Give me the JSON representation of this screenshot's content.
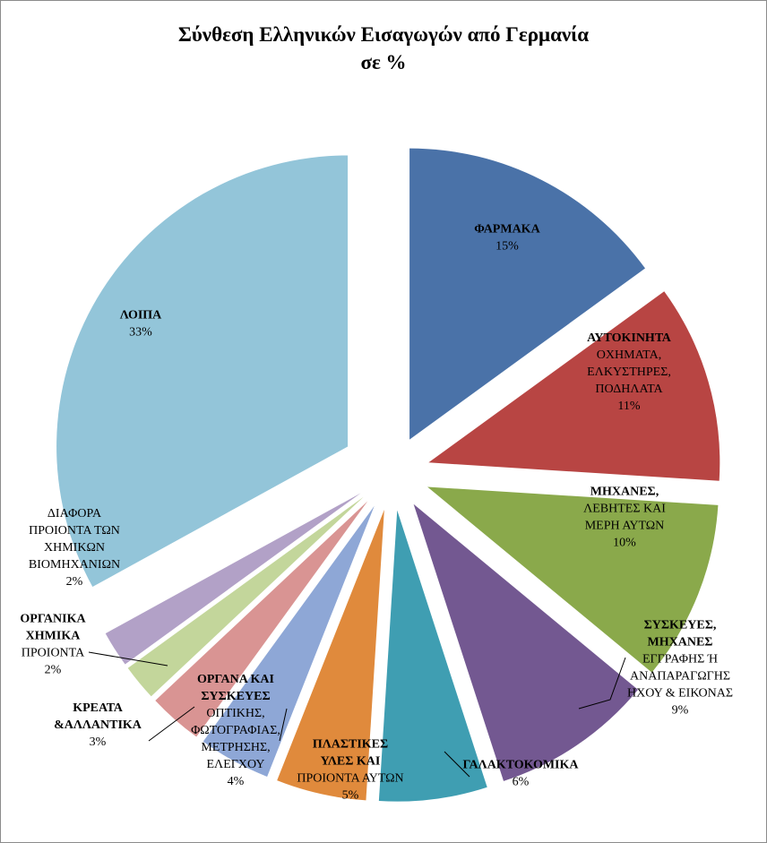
{
  "chart_data": {
    "type": "pie",
    "title": "Σύνθεση Ελληνικών Εισαγωγών από Γερμανία",
    "subtitle": "σε %",
    "exploded": true,
    "slices": [
      {
        "label": [
          "ΦΑΡΜΑΚΑ"
        ],
        "value": 15,
        "value_label": "15%",
        "color": "#4a72a8"
      },
      {
        "label": [
          "ΑΥΤΟΚΙΝΗΤΑ",
          "ΟΧΗΜΑΤΑ,",
          "ΕΛΚΥΣΤΗΡΕΣ,",
          "ΠΟΔΗΛΑΤΑ"
        ],
        "value": 11,
        "value_label": "11%",
        "color": "#b84543"
      },
      {
        "label": [
          "ΜΗΧΑΝΕΣ,",
          "ΛΕΒΗΤΕΣ ΚΑΙ",
          "ΜΕΡΗ ΑΥΤΩΝ"
        ],
        "value": 10,
        "value_label": "10%",
        "color": "#8aa94b"
      },
      {
        "label": [
          "ΣΥΣΚΕΥΕΣ,",
          "ΜΗΧΑΝΕΣ",
          "ΕΓΓΡΑΦΗΣ Ή",
          "ΑΝΑΠΑΡΑΓΩΓΗΣ",
          "ΗΧΟΥ & ΕΙΚΟΝΑΣ"
        ],
        "value": 9,
        "value_label": "9%",
        "color": "#735891"
      },
      {
        "label": [
          "ΓΑΛΑΚΤΟΚΟΜΙΚΑ"
        ],
        "value": 6,
        "value_label": "6%",
        "color": "#3f9eb2"
      },
      {
        "label": [
          "ΠΛΑΣΤΙΚΕΣ",
          "ΥΛΕΣ ΚΑΙ",
          "ΠΡΟΙΟΝΤΑ ΑΥΤΩΝ"
        ],
        "value": 5,
        "value_label": "5%",
        "color": "#e08a3c"
      },
      {
        "label": [
          "ΟΡΓΑΝΑ ΚΑΙ",
          "ΣΥΣΚΕΥΕΣ",
          "ΟΠΤΙΚΗΣ,",
          "ΦΩΤΟΓΡΑΦΙΑΣ,",
          "ΜΕΤΡΗΣΗΣ,",
          "ΕΛΕΓΧΟΥ"
        ],
        "value": 4,
        "value_label": "4%",
        "color": "#8ea7d6"
      },
      {
        "label": [
          "ΚΡΕΑΤΑ",
          "&ΑΛΛΑΝΤΙΚΑ"
        ],
        "value": 3,
        "value_label": "3%",
        "color": "#d99493"
      },
      {
        "label": [
          "ΟΡΓΑΝΙΚΑ",
          "ΧΗΜΙΚΑ",
          "ΠΡΟΙΟΝΤΑ"
        ],
        "value": 2,
        "value_label": "2%",
        "color": "#c3d69b"
      },
      {
        "label": [
          "ΔΙΑΦΟΡΑ",
          "ΠΡΟΙΟΝΤΑ ΤΩΝ",
          "ΧΗΜΙΚΩΝ",
          "ΒΙΟΜΗΧΑΝΙΩΝ"
        ],
        "value": 2,
        "value_label": "2%",
        "color": "#b2a1c7"
      },
      {
        "label": [
          "ΛΟΙΠΑ"
        ],
        "value": 33,
        "value_label": "33%",
        "color": "#93c5d9"
      }
    ]
  }
}
